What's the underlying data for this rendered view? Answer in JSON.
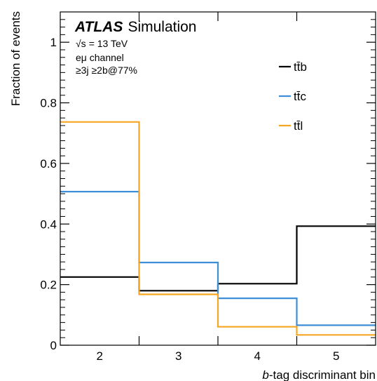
{
  "chart_data": {
    "type": "line",
    "step": true,
    "experiment": "ATLAS",
    "experiment_suffix": "Simulation",
    "energy_prefix": "√s",
    "energy_value": "= 13 TeV",
    "channel": "eμ channel",
    "selection": "≥3j ≥2b@77%",
    "xlabel_italic": "b",
    "xlabel_rest": "-tag discriminant bin",
    "ylabel": "Fraction of events",
    "x_categories": [
      "2",
      "3",
      "4",
      "5"
    ],
    "xlim": [
      1.5,
      5.5
    ],
    "ylim": [
      0,
      1.1
    ],
    "y_ticks": [
      {
        "value": 0,
        "label": "0"
      },
      {
        "value": 0.2,
        "label": "0.2"
      },
      {
        "value": 0.4,
        "label": "0.4"
      },
      {
        "value": 0.6,
        "label": "0.6"
      },
      {
        "value": 0.8,
        "label": "0.8"
      },
      {
        "value": 1,
        "label": "1"
      }
    ],
    "legend_position": "top-right",
    "series": [
      {
        "name": "tt̄b",
        "color": "#000000",
        "values": [
          0.225,
          0.18,
          0.203,
          0.393
        ]
      },
      {
        "name": "tt̄c",
        "color": "#3f8ed8",
        "values": [
          0.507,
          0.273,
          0.155,
          0.066
        ]
      },
      {
        "name": "tt̄l",
        "color": "#f5a623",
        "values": [
          0.737,
          0.168,
          0.061,
          0.034
        ]
      }
    ]
  }
}
